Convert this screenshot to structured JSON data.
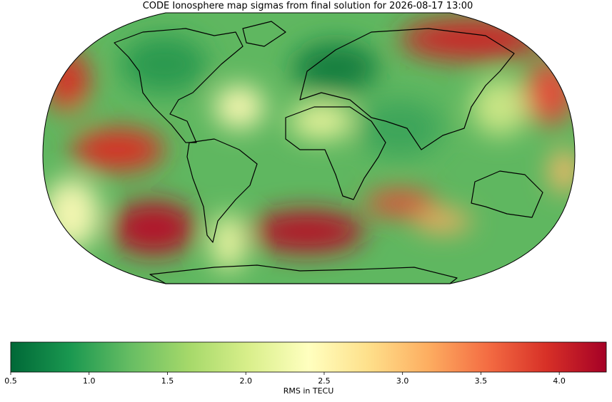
{
  "chart_data": {
    "type": "map",
    "title": "CODE Ionosphere map sigmas from final solution for 2026-08-17 13:00",
    "colorbar_label": "RMS in TECU",
    "clim": [
      0.5,
      4.3
    ],
    "cticks": [
      0.5,
      {
        "value": 1,
        "label": "1.0"
      },
      1.5,
      {
        "value": 2,
        "label": "2.0"
      },
      2.5,
      {
        "value": 3,
        "label": "3.0"
      },
      3.5,
      {
        "value": 4,
        "label": "4.0"
      }
    ],
    "colormap": [
      "#006837",
      "#1a9850",
      "#66bd63",
      "#a6d96a",
      "#d9ef8b",
      "#ffffbf",
      "#fee08b",
      "#fdae61",
      "#f46d43",
      "#d73027",
      "#a50026"
    ]
  }
}
